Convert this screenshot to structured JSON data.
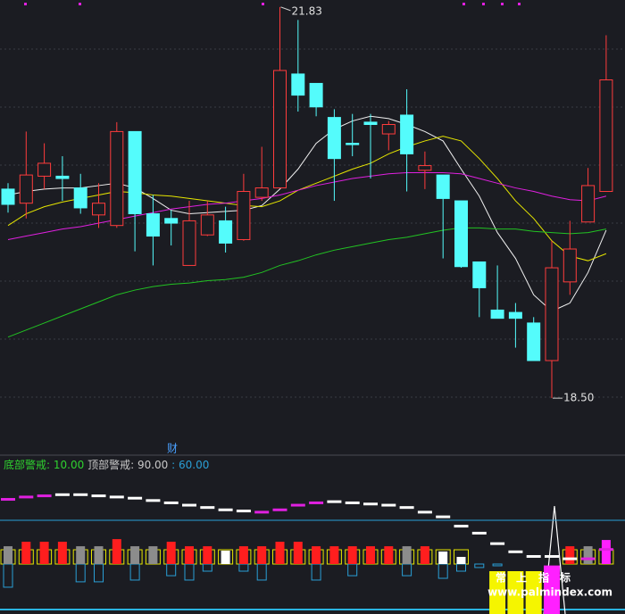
{
  "chart_data": [
    {
      "type": "candlestick",
      "ylim": [
        18.03,
        21.89
      ],
      "grid": true,
      "up_color": "#ff3c3c",
      "down_color": "#54fcfc",
      "open": [
        20.28,
        20.16,
        20.39,
        20.39,
        20.29,
        20.06,
        19.97,
        20.77,
        20.07,
        20.03,
        19.63,
        19.89,
        20.01,
        19.85,
        20.21,
        20.29,
        21.26,
        21.18,
        20.89,
        20.67,
        20.85,
        20.75,
        20.91,
        20.44,
        20.4,
        20.18,
        19.66,
        19.25,
        19.23,
        19.14,
        18.82,
        19.49,
        20.0,
        20.26
      ],
      "high": [
        20.33,
        20.77,
        20.67,
        20.56,
        20.41,
        20.33,
        20.85,
        20.77,
        20.23,
        20.1,
        20.18,
        20.18,
        20.13,
        20.41,
        20.64,
        21.83,
        21.72,
        21.18,
        20.96,
        20.92,
        20.92,
        20.86,
        21.13,
        20.6,
        20.4,
        20.18,
        19.66,
        19.63,
        19.31,
        19.19,
        19.84,
        20.01,
        20.46,
        21.59
      ],
      "low": [
        20.08,
        20.03,
        20.28,
        20.18,
        20.07,
        19.95,
        19.95,
        19.75,
        19.63,
        19.8,
        19.63,
        19.88,
        19.74,
        19.84,
        20.18,
        20.29,
        20.94,
        20.9,
        20.18,
        20.56,
        20.37,
        20.61,
        20.26,
        20.28,
        19.69,
        19.61,
        19.19,
        19.18,
        18.93,
        18.82,
        18.5,
        19.38,
        20.0,
        20.26
      ],
      "close": [
        20.15,
        20.4,
        20.5,
        20.37,
        20.12,
        20.16,
        20.77,
        20.07,
        19.88,
        19.99,
        20.01,
        20.06,
        19.82,
        20.26,
        20.29,
        21.29,
        21.08,
        20.98,
        20.54,
        20.66,
        20.83,
        20.83,
        20.58,
        20.48,
        20.2,
        19.62,
        19.44,
        19.18,
        19.18,
        18.82,
        19.61,
        19.77,
        20.31,
        21.21
      ],
      "series": [
        {
          "color": "#f0f0f0",
          "values": [
            20.23,
            20.26,
            20.28,
            20.29,
            20.29,
            20.31,
            20.33,
            20.29,
            20.2,
            20.1,
            20.07,
            20.08,
            20.09,
            20.1,
            20.14,
            20.28,
            20.45,
            20.67,
            20.79,
            20.86,
            20.9,
            20.88,
            20.83,
            20.77,
            20.69,
            20.45,
            20.22,
            19.91,
            19.69,
            19.38,
            19.24,
            19.31,
            19.57,
            19.93
          ]
        },
        {
          "color": "#e6e600",
          "values": [
            19.97,
            20.07,
            20.13,
            20.17,
            20.2,
            20.23,
            20.26,
            20.25,
            20.23,
            20.22,
            20.2,
            20.18,
            20.16,
            20.14,
            20.13,
            20.18,
            20.27,
            20.33,
            20.39,
            20.45,
            20.5,
            20.58,
            20.64,
            20.69,
            20.73,
            20.69,
            20.54,
            20.37,
            20.18,
            20.03,
            19.84,
            19.71,
            19.67,
            19.73
          ]
        },
        {
          "color": "#e020e0",
          "values": [
            19.85,
            19.88,
            19.91,
            19.94,
            19.96,
            19.99,
            20.02,
            20.05,
            20.08,
            20.11,
            20.13,
            20.15,
            20.16,
            20.18,
            20.2,
            20.23,
            20.27,
            20.31,
            20.34,
            20.37,
            20.39,
            20.41,
            20.42,
            20.42,
            20.42,
            20.41,
            20.37,
            20.33,
            20.29,
            20.26,
            20.22,
            20.19,
            20.18,
            20.22
          ]
        },
        {
          "color": "#22c322",
          "values": [
            19.02,
            19.08,
            19.14,
            19.2,
            19.26,
            19.32,
            19.38,
            19.42,
            19.45,
            19.47,
            19.48,
            19.5,
            19.51,
            19.53,
            19.57,
            19.63,
            19.67,
            19.72,
            19.76,
            19.79,
            19.82,
            19.85,
            19.87,
            19.9,
            19.93,
            19.95,
            19.95,
            19.94,
            19.94,
            19.92,
            19.91,
            19.9,
            19.91,
            19.94
          ]
        }
      ],
      "annotations": [
        {
          "value": 21.83
        },
        {
          "value": 18.5,
          "label": "18.50"
        }
      ],
      "marker_text": "财"
    },
    {
      "type": "indicator",
      "ylim": [
        25.7,
        132.9
      ],
      "lines": [
        {
          "name": "底部警戒:",
          "value": 10,
          "label": "10.00",
          "color": "#2fd22f"
        },
        {
          "name": "顶部警戒:",
          "value": 90,
          "label": "90.00",
          "color": "#c8c8c8"
        },
        {
          "name": ":",
          "value": 60,
          "label": "60.00",
          "color": "#2a9fd6"
        }
      ],
      "dash": {
        "values": [
          104.4,
          106,
          106.8,
          107.6,
          107.6,
          106.8,
          106,
          105.2,
          103.6,
          102,
          100.4,
          98.8,
          97.2,
          96.4,
          95.6,
          97.2,
          100.4,
          102,
          102.8,
          102,
          101.2,
          100.4,
          98.8,
          95.6,
          92.4,
          86,
          81.2,
          74,
          68.4,
          65.2,
          65.2,
          63.6,
          63.6,
          70
        ],
        "colors": [
          "#e020e0",
          "#e020e0",
          "#e020e0",
          "#ffffff",
          "#ffffff",
          "#ffffff",
          "#ffffff",
          "#ffffff",
          "#ffffff",
          "#ffffff",
          "#ffffff",
          "#ffffff",
          "#ffffff",
          "#ffffff",
          "#e020e0",
          "#e020e0",
          "#e020e0",
          "#e020e0",
          "#ffffff",
          "#ffffff",
          "#ffffff",
          "#ffffff",
          "#ffffff",
          "#ffffff",
          "#ffffff",
          "#ffffff",
          "#ffffff",
          "#ffffff",
          "#ffffff",
          "#ffffff",
          "#ffffff",
          "#ffffff",
          "#e020e0",
          "#e020e0"
        ]
      },
      "bars": {
        "values": [
          72.2,
          75.3,
          75.3,
          75.3,
          72.2,
          72.2,
          77.1,
          72.2,
          72.2,
          75.3,
          72.2,
          72.2,
          69.2,
          72.2,
          72.2,
          75.3,
          75.3,
          72.2,
          72.2,
          72.2,
          72.2,
          72.2,
          72.2,
          72.2,
          68.6,
          64.9,
          null,
          null,
          null,
          null,
          null,
          72.2,
          72.2,
          76.5
        ],
        "colors": [
          "#8c8c8c",
          "#ff1e1e",
          "#ff1e1e",
          "#ff1e1e",
          "#8c8c8c",
          "#8c8c8c",
          "#ff1e1e",
          "#8c8c8c",
          "#8c8c8c",
          "#ff1e1e",
          "#ff1e1e",
          "#ff1e1e",
          "#ffffff",
          "#ff1e1e",
          "#ff1e1e",
          "#ff1e1e",
          "#ff1e1e",
          "#ff1e1e",
          "#ff1e1e",
          "#ff1e1e",
          "#ff1e1e",
          "#ff1e1e",
          "#8c8c8c",
          "#ff1e1e",
          "#ffffff",
          "#ffffff",
          "#ffffff",
          "#ffffff",
          "#ffffff",
          "#ffffff",
          "#ffffff",
          "#ff1e1e",
          "#8c8c8c",
          "#ff20ff"
        ]
      },
      "boxes": {
        "color": "#2a9fd6",
        "values": [
          44.1,
          null,
          null,
          null,
          47.8,
          47.8,
          null,
          49.0,
          null,
          52.0,
          49.0,
          55.1,
          null,
          55.1,
          49.0,
          null,
          null,
          49.0,
          null,
          52.0,
          null,
          null,
          52.0,
          null,
          50.2,
          55.1,
          57.6,
          58.8,
          null,
          null,
          null,
          null,
          null,
          null
        ]
      },
      "signals": {
        "values": [
          null,
          null,
          null,
          null,
          null,
          null,
          null,
          null,
          null,
          null,
          null,
          null,
          null,
          null,
          null,
          null,
          null,
          null,
          null,
          null,
          null,
          null,
          null,
          null,
          null,
          null,
          null,
          55.1,
          55.1,
          55.1,
          59.0,
          null,
          null,
          null
        ],
        "colors": [
          "#f5f500",
          "#f5f500",
          "#f5f500",
          "#f5f500",
          "#f5f500",
          "#f5f500",
          "#f5f500",
          "#f5f500",
          "#f5f500",
          "#f5f500",
          "#f5f500",
          "#f5f500",
          "#f5f500",
          "#f5f500",
          "#f5f500",
          "#f5f500",
          "#f5f500",
          "#f5f500",
          "#f5f500",
          "#f5f500",
          "#f5f500",
          "#f5f500",
          "#f5f500",
          "#f5f500",
          "#f5f500",
          "#f5f500",
          "#f5f500",
          "#f5f500",
          "#f5f500",
          "#f5f500",
          "#ff20ff",
          "#f5f500",
          "#f5f500",
          "#f5f500"
        ]
      },
      "signal_text": [
        "常",
        "上",
        "指",
        "标"
      ]
    }
  ],
  "watermark": "www.palmindex.com"
}
